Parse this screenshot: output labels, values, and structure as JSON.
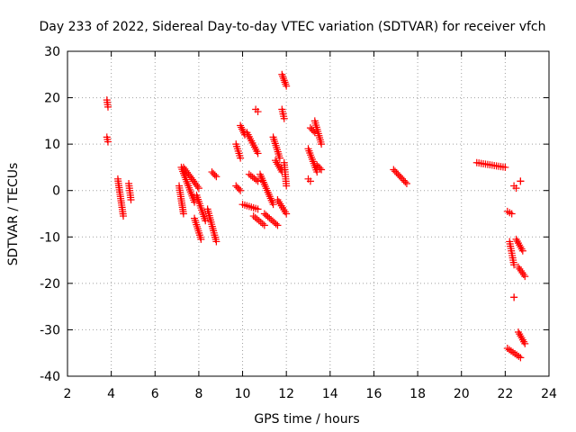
{
  "chart_data": {
    "type": "scatter",
    "title": "Day 233 of 2022, Sidereal Day-to-day VTEC variation (SDTVAR) for receiver vfch",
    "xlabel": "GPS time / hours",
    "ylabel": "SDTVAR / TECUs",
    "xlim": [
      2,
      24
    ],
    "ylim": [
      -40,
      30
    ],
    "xticks": [
      2,
      4,
      6,
      8,
      10,
      12,
      14,
      16,
      18,
      20,
      22,
      24
    ],
    "yticks": [
      -40,
      -30,
      -20,
      -10,
      0,
      10,
      20,
      30
    ],
    "grid": true,
    "marker": "+",
    "marker_color": "#ff0000",
    "series": [
      {
        "name": "SDTVAR",
        "segments": [
          {
            "x": [
              3.8,
              3.85
            ],
            "y": [
              19.5,
              18.0
            ]
          },
          {
            "x": [
              3.8,
              3.85
            ],
            "y": [
              11.5,
              10.5
            ]
          },
          {
            "x": [
              4.3,
              4.55
            ],
            "y": [
              2.5,
              -5.5
            ]
          },
          {
            "x": [
              4.8,
              4.9
            ],
            "y": [
              1.5,
              -2.0
            ]
          },
          {
            "x": [
              7.1,
              7.3
            ],
            "y": [
              1.0,
              -5.0
            ]
          },
          {
            "x": [
              7.2,
              7.8
            ],
            "y": [
              5.0,
              -2.5
            ]
          },
          {
            "x": [
              7.3,
              8.0
            ],
            "y": [
              5.0,
              0.5
            ]
          },
          {
            "x": [
              7.8,
              8.1
            ],
            "y": [
              -6.0,
              -10.5
            ]
          },
          {
            "x": [
              7.9,
              8.3
            ],
            "y": [
              -1.0,
              -6.5
            ]
          },
          {
            "x": [
              8.4,
              8.8
            ],
            "y": [
              -4.0,
              -11.0
            ]
          },
          {
            "x": [
              8.6,
              8.8
            ],
            "y": [
              4.0,
              3.0
            ]
          },
          {
            "x": [
              9.7,
              9.9
            ],
            "y": [
              10.0,
              7.0
            ]
          },
          {
            "x": [
              9.7,
              9.9
            ],
            "y": [
              1.0,
              0.0
            ]
          },
          {
            "x": [
              9.9,
              10.1
            ],
            "y": [
              14.0,
              12.0
            ]
          },
          {
            "x": [
              10.2,
              10.7
            ],
            "y": [
              12.5,
              8.0
            ]
          },
          {
            "x": [
              10.0,
              10.7
            ],
            "y": [
              -3.0,
              -4.0
            ]
          },
          {
            "x": [
              10.3,
              10.7
            ],
            "y": [
              3.5,
              2.0
            ]
          },
          {
            "x": [
              10.6,
              10.7
            ],
            "y": [
              17.5,
              17.0
            ]
          },
          {
            "x": [
              10.5,
              11.0
            ],
            "y": [
              -5.5,
              -7.5
            ]
          },
          {
            "x": [
              10.8,
              11.4
            ],
            "y": [
              3.5,
              -3.0
            ]
          },
          {
            "x": [
              11.0,
              11.6
            ],
            "y": [
              -5.0,
              -7.5
            ]
          },
          {
            "x": [
              11.4,
              11.7
            ],
            "y": [
              11.5,
              7.0
            ]
          },
          {
            "x": [
              11.5,
              11.8
            ],
            "y": [
              6.5,
              4.0
            ]
          },
          {
            "x": [
              11.6,
              12.0
            ],
            "y": [
              -2.0,
              -5.0
            ]
          },
          {
            "x": [
              11.8,
              12.0
            ],
            "y": [
              25.0,
              22.5
            ]
          },
          {
            "x": [
              11.8,
              11.9
            ],
            "y": [
              17.5,
              15.5
            ]
          },
          {
            "x": [
              11.9,
              12.0
            ],
            "y": [
              6.0,
              1.0
            ]
          },
          {
            "x": [
              13.0,
              13.1
            ],
            "y": [
              2.5,
              2.0
            ]
          },
          {
            "x": [
              13.0,
              13.4
            ],
            "y": [
              9.0,
              4.0
            ]
          },
          {
            "x": [
              13.1,
              13.3
            ],
            "y": [
              13.5,
              12.5
            ]
          },
          {
            "x": [
              13.3,
              13.6
            ],
            "y": [
              15.0,
              10.0
            ]
          },
          {
            "x": [
              13.4,
              13.6
            ],
            "y": [
              5.5,
              4.5
            ]
          },
          {
            "x": [
              16.9,
              17.5
            ],
            "y": [
              4.5,
              1.5
            ]
          },
          {
            "x": [
              20.7,
              22.0
            ],
            "y": [
              6.0,
              5.0
            ]
          },
          {
            "x": [
              22.1,
              22.3
            ],
            "y": [
              -4.5,
              -5.0
            ]
          },
          {
            "x": [
              22.4,
              22.5
            ],
            "y": [
              1.0,
              0.5
            ]
          },
          {
            "x": [
              22.7,
              22.7
            ],
            "y": [
              2.0,
              2.0
            ]
          },
          {
            "x": [
              22.2,
              22.4
            ],
            "y": [
              -11.0,
              -16.0
            ]
          },
          {
            "x": [
              22.5,
              22.8
            ],
            "y": [
              -10.5,
              -13.0
            ]
          },
          {
            "x": [
              22.6,
              22.9
            ],
            "y": [
              -16.5,
              -18.5
            ]
          },
          {
            "x": [
              22.4,
              22.4
            ],
            "y": [
              -23.0,
              -23.0
            ]
          },
          {
            "x": [
              22.1,
              22.7
            ],
            "y": [
              -34.0,
              -36.0
            ]
          },
          {
            "x": [
              22.6,
              22.9
            ],
            "y": [
              -30.5,
              -33.0
            ]
          }
        ]
      }
    ]
  }
}
